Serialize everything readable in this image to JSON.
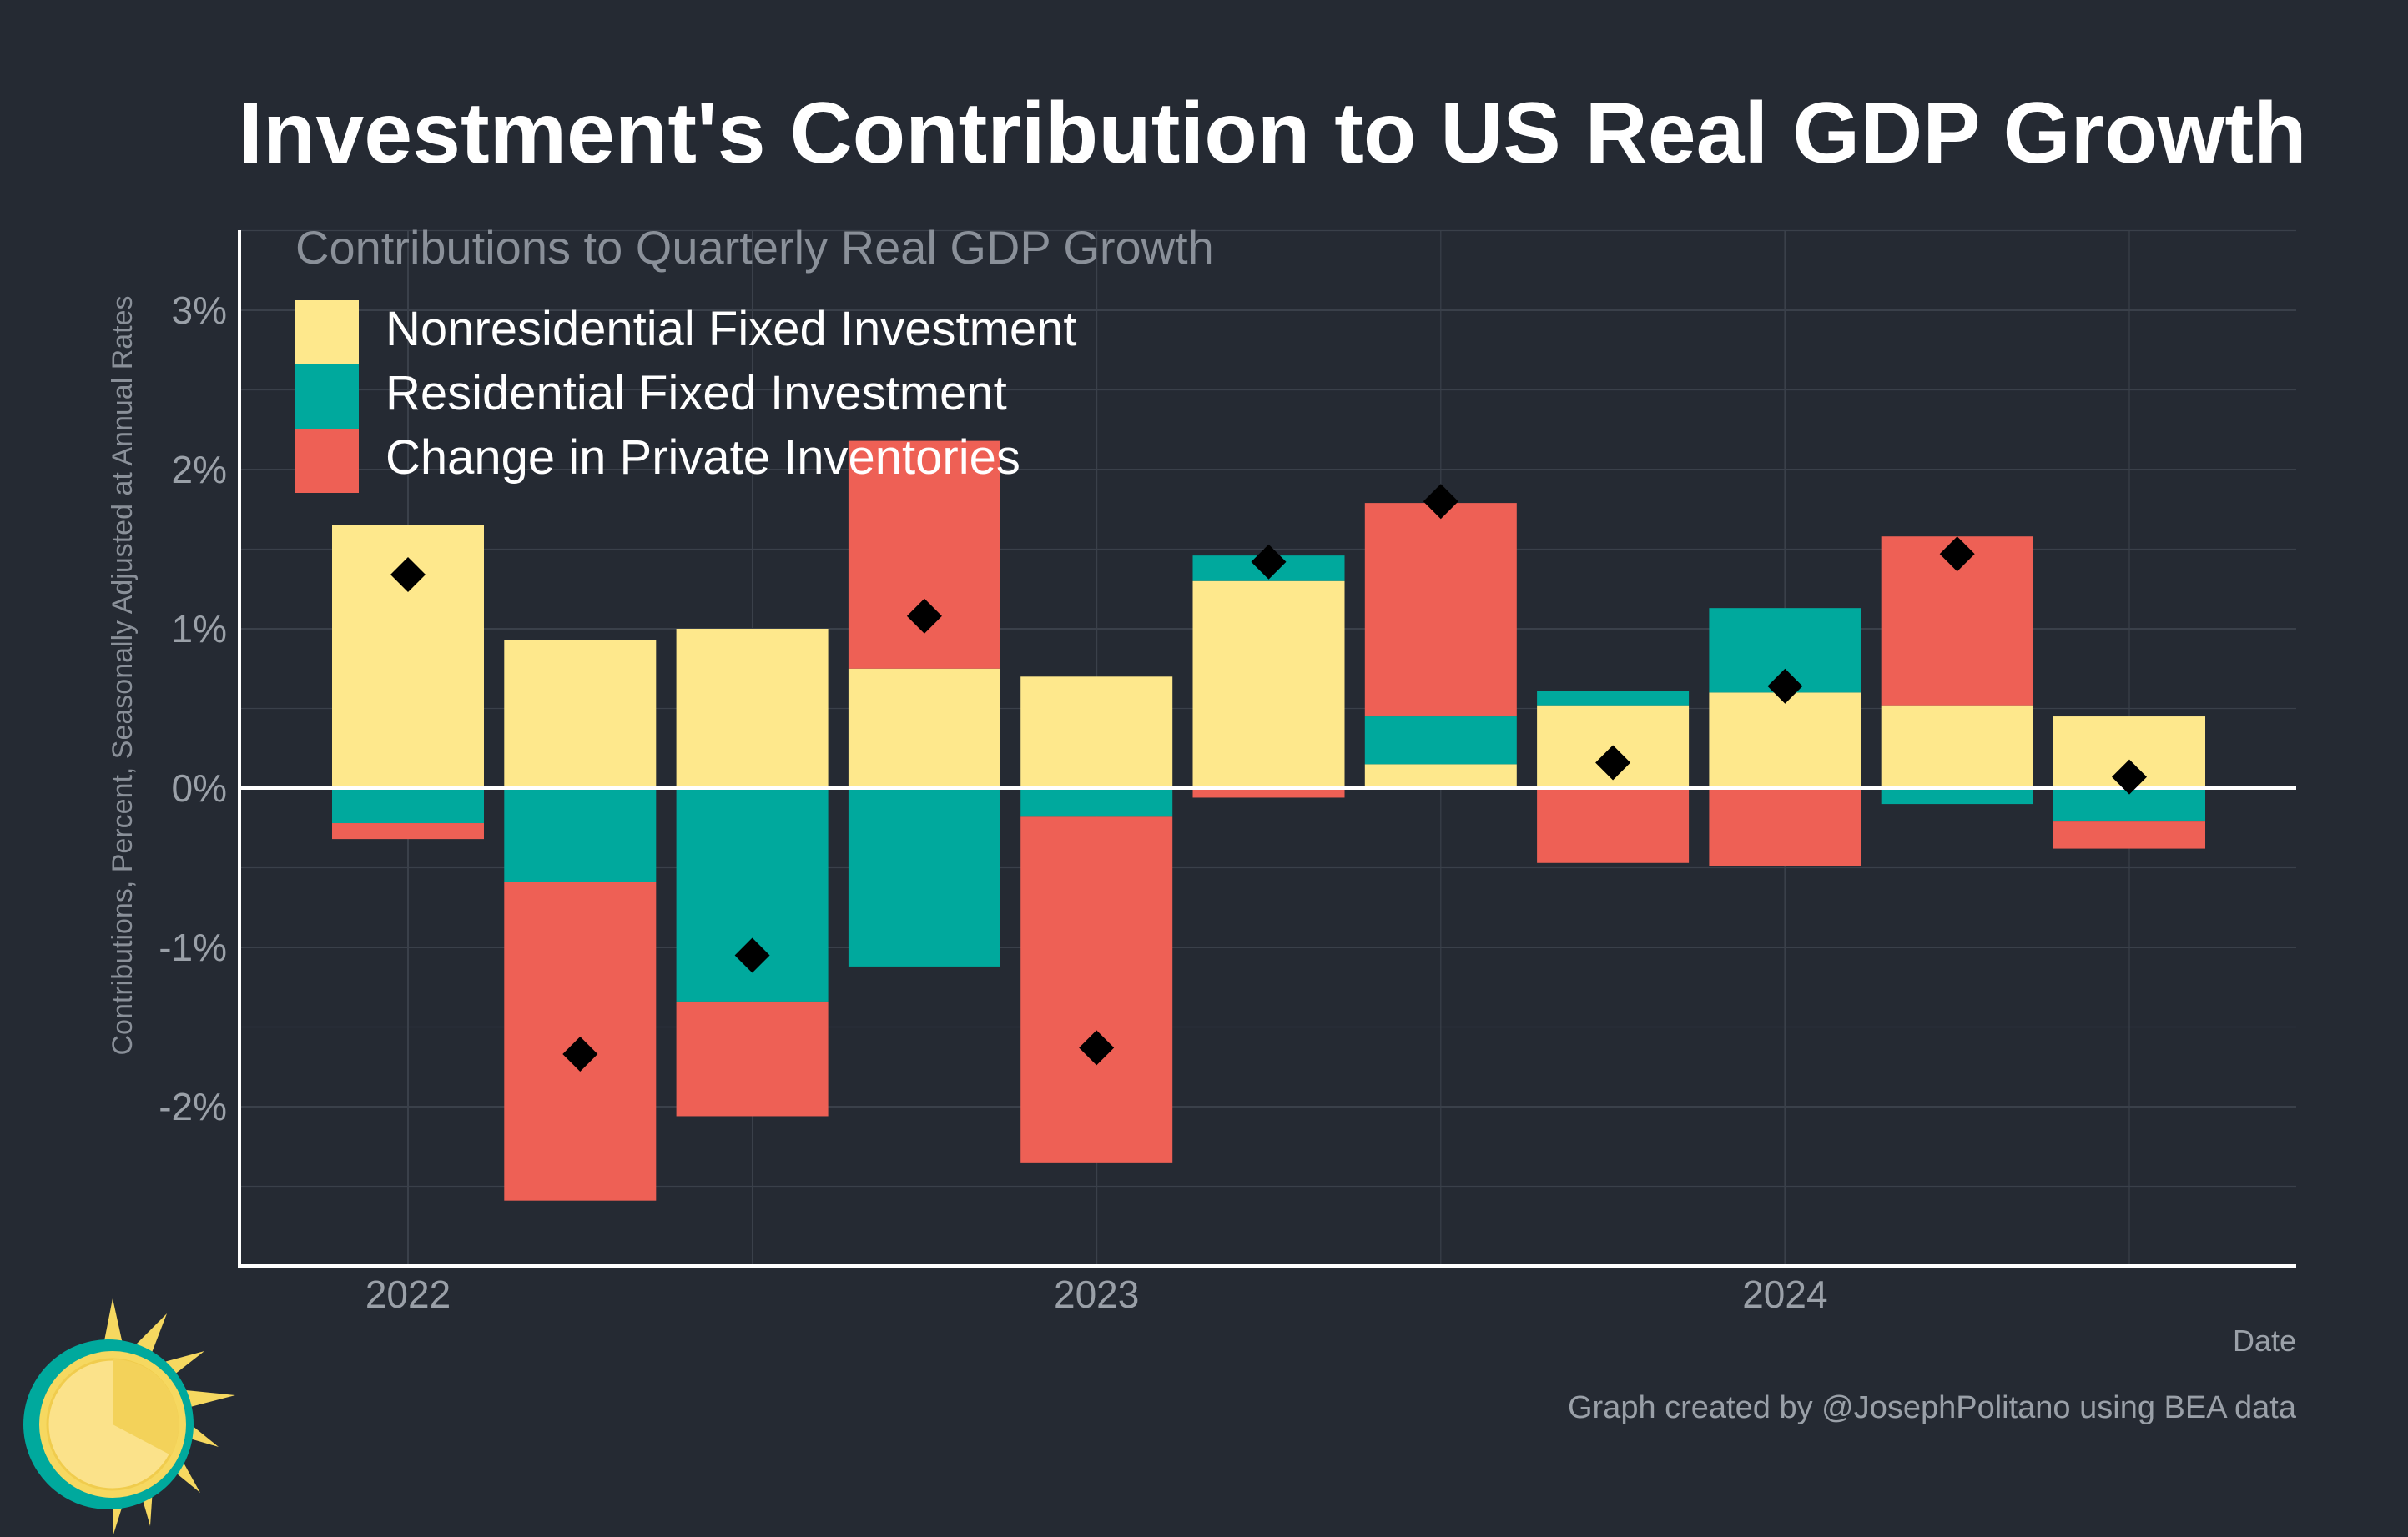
{
  "chart_data": {
    "type": "bar",
    "stacked": true,
    "title": "Investment's Contribution to US Real GDP Growth",
    "subtitle": "Contributions to Quarterly Real GDP Growth",
    "xlabel": "Date",
    "ylabel": "Contributions, Percent, Seasonally Adjusted at Annual Rates",
    "caption": "Graph created by @JosephPolitano using BEA data",
    "x": [
      "2022-Q1",
      "2022-Q2",
      "2022-Q3",
      "2022-Q4",
      "2023-Q1",
      "2023-Q2",
      "2023-Q3",
      "2023-Q4",
      "2024-Q1",
      "2024-Q2",
      "2024-Q3"
    ],
    "x_ticks": [
      {
        "label": "2022",
        "index": 0
      },
      {
        "label": "2023",
        "index": 4
      },
      {
        "label": "2024",
        "index": 8
      }
    ],
    "ylim": [
      -3.0,
      3.5
    ],
    "y_ticks": [
      {
        "value": 3,
        "label": "3%"
      },
      {
        "value": 2,
        "label": "2%"
      },
      {
        "value": 1,
        "label": "1%"
      },
      {
        "value": 0,
        "label": "0%"
      },
      {
        "value": -1,
        "label": "-1%"
      },
      {
        "value": -2,
        "label": "-2%"
      }
    ],
    "series": [
      {
        "name": "Nonresidential Fixed Investment",
        "color": "#fee88c",
        "values": [
          1.65,
          0.93,
          1.0,
          0.75,
          0.7,
          1.3,
          0.15,
          0.52,
          0.6,
          0.52,
          0.45
        ]
      },
      {
        "name": "Residential Fixed Investment",
        "color": "#00a99d",
        "values": [
          -0.22,
          -0.59,
          -1.34,
          -1.12,
          -0.18,
          0.16,
          0.3,
          0.09,
          0.53,
          -0.1,
          -0.21
        ]
      },
      {
        "name": "Change in Private Inventories",
        "color": "#ee6055",
        "values": [
          -0.1,
          -2.0,
          -0.72,
          1.43,
          -2.17,
          -0.06,
          1.34,
          -0.47,
          -0.49,
          1.06,
          -0.17
        ]
      }
    ],
    "total": {
      "name": "Total",
      "marker": "diamond",
      "color": "#000000",
      "values": [
        1.34,
        -1.67,
        -1.05,
        1.08,
        -1.63,
        1.42,
        1.8,
        0.16,
        0.64,
        1.47,
        0.07
      ]
    },
    "grid": true,
    "legend_position": "top-left"
  },
  "colors": {
    "background": "#252a33",
    "grid": "#3a404a",
    "axis": "#ffffff",
    "tick_text": "#9aa0a8",
    "zero_line": "#ffffff"
  }
}
